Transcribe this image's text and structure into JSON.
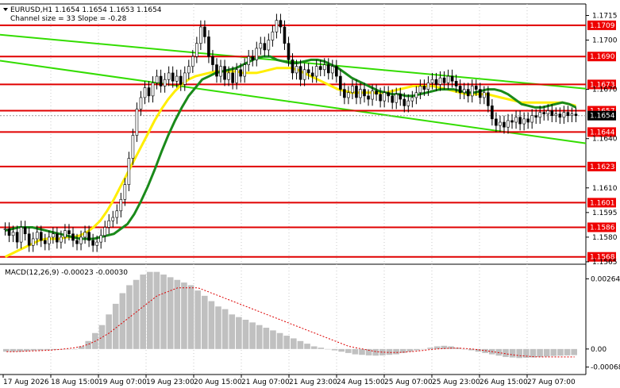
{
  "header": {
    "text": "EURUSD,H1  1.1654 1.1654 1.1653 1.1654",
    "channel": "Channel size = 33 Slope = -0.28"
  },
  "macd_header": "MACD(12,26,9) -0.00023 -0.00030",
  "colors": {
    "candle": "#000000",
    "level_line": "#e00000",
    "level_label_bg": "#ee0000",
    "level_label_text": "#ffffff",
    "channel": "#33dd00",
    "ma_fast": "#1a8a1a",
    "ma_slow": "#ffee00",
    "macd_hist": "#c0c0c0",
    "macd_signal": "#dd0000",
    "current_bg": "#000000",
    "current_text": "#ffffff"
  },
  "chart_data": {
    "type": "candlestick",
    "symbol": "EURUSD",
    "timeframe": "H1",
    "ohlc_last": {
      "open": 1.1654,
      "high": 1.1654,
      "low": 1.1653,
      "close": 1.1654
    },
    "current_price": "1.1654",
    "price_axis": {
      "ylim": [
        1.1564,
        1.1722
      ],
      "ticks": [
        "1.1715",
        "1.1700",
        "1.1670",
        "1.1640",
        "1.1610",
        "1.1595",
        "1.1580",
        "1.1565"
      ]
    },
    "x_tick_labels": [
      "17 Aug 2026",
      "18 Aug 15:00",
      "19 Aug 07:00",
      "19 Aug 23:00",
      "20 Aug 15:00",
      "21 Aug 07:00",
      "21 Aug 23:00",
      "24 Aug 15:00",
      "25 Aug 07:00",
      "25 Aug 23:00",
      "26 Aug 15:00",
      "27 Aug 07:00"
    ],
    "levels": [
      "1.1709",
      "1.1690",
      "1.1673",
      "1.1657",
      "1.1644",
      "1.1623",
      "1.1601",
      "1.1586",
      "1.1568"
    ],
    "channel": {
      "size": 33,
      "slope": -0.28,
      "upper": [
        [
          0,
          1.1703
        ],
        [
          143,
          1.1671
        ]
      ],
      "lower": [
        [
          0,
          1.1687
        ],
        [
          143,
          1.1638
        ]
      ]
    },
    "close_series": [
      1.1585,
      1.1581,
      1.1583,
      1.1577,
      1.1586,
      1.1582,
      1.1575,
      1.1579,
      1.1583,
      1.1578,
      1.1576,
      1.158,
      1.1582,
      1.1577,
      1.158,
      1.1584,
      1.1582,
      1.1578,
      1.1576,
      1.158,
      1.1583,
      1.1578,
      1.1575,
      1.1577,
      1.1581,
      1.1586,
      1.159,
      1.1592,
      1.1596,
      1.1603,
      1.1612,
      1.1628,
      1.1642,
      1.1658,
      1.1665,
      1.1671,
      1.1666,
      1.1674,
      1.1678,
      1.1672,
      1.1676,
      1.168,
      1.1675,
      1.1678,
      1.1673,
      1.168,
      1.1684,
      1.169,
      1.1698,
      1.1708,
      1.1702,
      1.169,
      1.1685,
      1.1678,
      1.1684,
      1.1676,
      1.168,
      1.1674,
      1.1682,
      1.1678,
      1.1685,
      1.169,
      1.1688,
      1.1695,
      1.1698,
      1.1694,
      1.17,
      1.1705,
      1.1712,
      1.1708,
      1.1698,
      1.1688,
      1.168,
      1.1684,
      1.1676,
      1.1682,
      1.168,
      1.1678,
      1.1684,
      1.1682,
      1.1685,
      1.168,
      1.1684,
      1.1678,
      1.167,
      1.1665,
      1.1668,
      1.1672,
      1.1665,
      1.167,
      1.1666,
      1.1664,
      1.1669,
      1.1667,
      1.1663,
      1.1668,
      1.1666,
      1.1662,
      1.1667,
      1.1664,
      1.166,
      1.1663,
      1.1665,
      1.1668,
      1.1672,
      1.167,
      1.1674,
      1.1676,
      1.1673,
      1.1677,
      1.1674,
      1.1678,
      1.1675,
      1.1672,
      1.1668,
      1.167,
      1.1666,
      1.1672,
      1.167,
      1.1665,
      1.1668,
      1.166,
      1.1652,
      1.1648,
      1.165,
      1.1647,
      1.1651,
      1.165,
      1.1653,
      1.1649,
      1.1652,
      1.165,
      1.1654,
      1.1653,
      1.1656,
      1.1655,
      1.1657,
      1.1654,
      1.1655,
      1.1653,
      1.1656,
      1.1654,
      1.1655,
      1.1654
    ],
    "ma_fast_series": [
      1.1584,
      1.1585,
      1.1586,
      1.1586,
      1.1586,
      1.1585,
      1.1584,
      1.1583,
      1.1582,
      1.1581,
      1.158,
      1.1579,
      1.1579,
      1.1579,
      1.158,
      1.1581,
      1.1582,
      1.1585,
      1.1588,
      1.1594,
      1.1602,
      1.1611,
      1.1621,
      1.1632,
      1.1642,
      1.1651,
      1.1659,
      1.1666,
      1.1671,
      1.1676,
      1.1678,
      1.168,
      1.1681,
      1.1682,
      1.1683,
      1.1685,
      1.1687,
      1.1689,
      1.169,
      1.169,
      1.1688,
      1.1687,
      1.1686,
      1.1686,
      1.1687,
      1.1688,
      1.1688,
      1.1687,
      1.1685,
      1.1683,
      1.168,
      1.1677,
      1.1675,
      1.1673,
      1.1671,
      1.1669,
      1.1668,
      1.1667,
      1.1667,
      1.1666,
      1.1666,
      1.1667,
      1.1668,
      1.1669,
      1.167,
      1.167,
      1.167,
      1.1669,
      1.1668,
      1.1668,
      1.1669,
      1.167,
      1.167,
      1.1669,
      1.1667,
      1.1664,
      1.1661,
      1.166,
      1.1659,
      1.1659,
      1.166,
      1.1661,
      1.1662,
      1.1661,
      1.1659
    ],
    "ma_slow_series": [
      1.1568,
      1.157,
      1.1572,
      1.1574,
      1.1576,
      1.1578,
      1.1579,
      1.1579,
      1.1579,
      1.158,
      1.158,
      1.1581,
      1.1583,
      1.1586,
      1.159,
      1.1596,
      1.1603,
      1.1611,
      1.1619,
      1.1627,
      1.1635,
      1.1643,
      1.1651,
      1.1658,
      1.1664,
      1.1669,
      1.1673,
      1.1676,
      1.1678,
      1.1679,
      1.168,
      1.1681,
      1.1681,
      1.1681,
      1.1681,
      1.168,
      1.168,
      1.168,
      1.1681,
      1.1682,
      1.1683,
      1.1683,
      1.1683,
      1.1682,
      1.168,
      1.1678,
      1.1676,
      1.1674,
      1.1672,
      1.167,
      1.1669,
      1.1668,
      1.1668,
      1.1668,
      1.1668,
      1.1668,
      1.1668,
      1.1669,
      1.167,
      1.1671,
      1.1672,
      1.1672,
      1.1672,
      1.1672,
      1.1671,
      1.167,
      1.1669,
      1.1668,
      1.1667,
      1.1667,
      1.1667,
      1.1667,
      1.1666,
      1.1665,
      1.1664,
      1.1663,
      1.1662,
      1.1662,
      1.1662,
      1.1662,
      1.1662,
      1.1662,
      1.1662,
      1.1661,
      1.166
    ],
    "macd": {
      "name": "MACD(12,26,9)",
      "values": {
        "main": -0.00023,
        "signal": -0.0003
      },
      "ylim": [
        -0.0009,
        0.00298
      ],
      "ticks": [
        "0.00264",
        "0.00",
        "-0.00068"
      ],
      "histogram": [
        -0.0001,
        -0.0001,
        -0.0001,
        -8e-05,
        -6e-05,
        -5e-05,
        -4e-05,
        -3e-05,
        -2e-05,
        -1e-05,
        0.0,
        0.0001,
        0.0003,
        0.0006,
        0.0009,
        0.0013,
        0.0017,
        0.0021,
        0.0024,
        0.0026,
        0.0028,
        0.0029,
        0.0029,
        0.0028,
        0.0027,
        0.0026,
        0.0025,
        0.0024,
        0.0022,
        0.002,
        0.0018,
        0.0016,
        0.0015,
        0.0013,
        0.0012,
        0.0011,
        0.001,
        0.0009,
        0.0008,
        0.0007,
        0.0006,
        0.0005,
        0.0004,
        0.0003,
        0.0002,
        0.0001,
        5e-05,
        0.0,
        -5e-05,
        -0.0001,
        -0.00015,
        -0.0002,
        -0.00022,
        -0.00024,
        -0.00025,
        -0.00024,
        -0.00022,
        -0.0002,
        -0.00015,
        -0.0001,
        -5e-05,
        0.0,
        5e-05,
        0.0001,
        0.00012,
        0.0001,
        5e-05,
        0.0,
        -5e-05,
        -0.0001,
        -0.00015,
        -0.0002,
        -0.00025,
        -0.0003,
        -0.00032,
        -0.00034,
        -0.00033,
        -0.00032,
        -0.0003,
        -0.00028,
        -0.00026,
        -0.00025,
        -0.00024,
        -0.00023
      ],
      "signal_line": [
        -0.0001,
        -0.0001,
        -9e-05,
        -8e-05,
        -7e-05,
        -6e-05,
        -5e-05,
        -3e-05,
        -1e-05,
        2e-05,
        5e-05,
        0.0001,
        0.00018,
        0.0003,
        0.00045,
        0.0006,
        0.0008,
        0.001,
        0.0012,
        0.0014,
        0.0016,
        0.0018,
        0.002,
        0.0021,
        0.0022,
        0.0023,
        0.0023,
        0.0023,
        0.0023,
        0.0022,
        0.0021,
        0.002,
        0.0019,
        0.0018,
        0.0017,
        0.0016,
        0.0015,
        0.0014,
        0.0013,
        0.0012,
        0.0011,
        0.001,
        0.0009,
        0.0008,
        0.0007,
        0.0006,
        0.0005,
        0.0004,
        0.0003,
        0.0002,
        0.0001,
        5e-05,
        0.0,
        -5e-05,
        -0.0001,
        -0.00012,
        -0.00013,
        -0.00013,
        -0.00012,
        -0.0001,
        -8e-05,
        -5e-05,
        -2e-05,
        0.0,
        2e-05,
        3e-05,
        3e-05,
        2e-05,
        0.0,
        -3e-05,
        -6e-05,
        -0.0001,
        -0.00014,
        -0.00018,
        -0.00022,
        -0.00025,
        -0.00027,
        -0.00029,
        -0.0003,
        -0.0003,
        -0.0003,
        -0.0003,
        -0.0003,
        -0.0003
      ]
    }
  }
}
